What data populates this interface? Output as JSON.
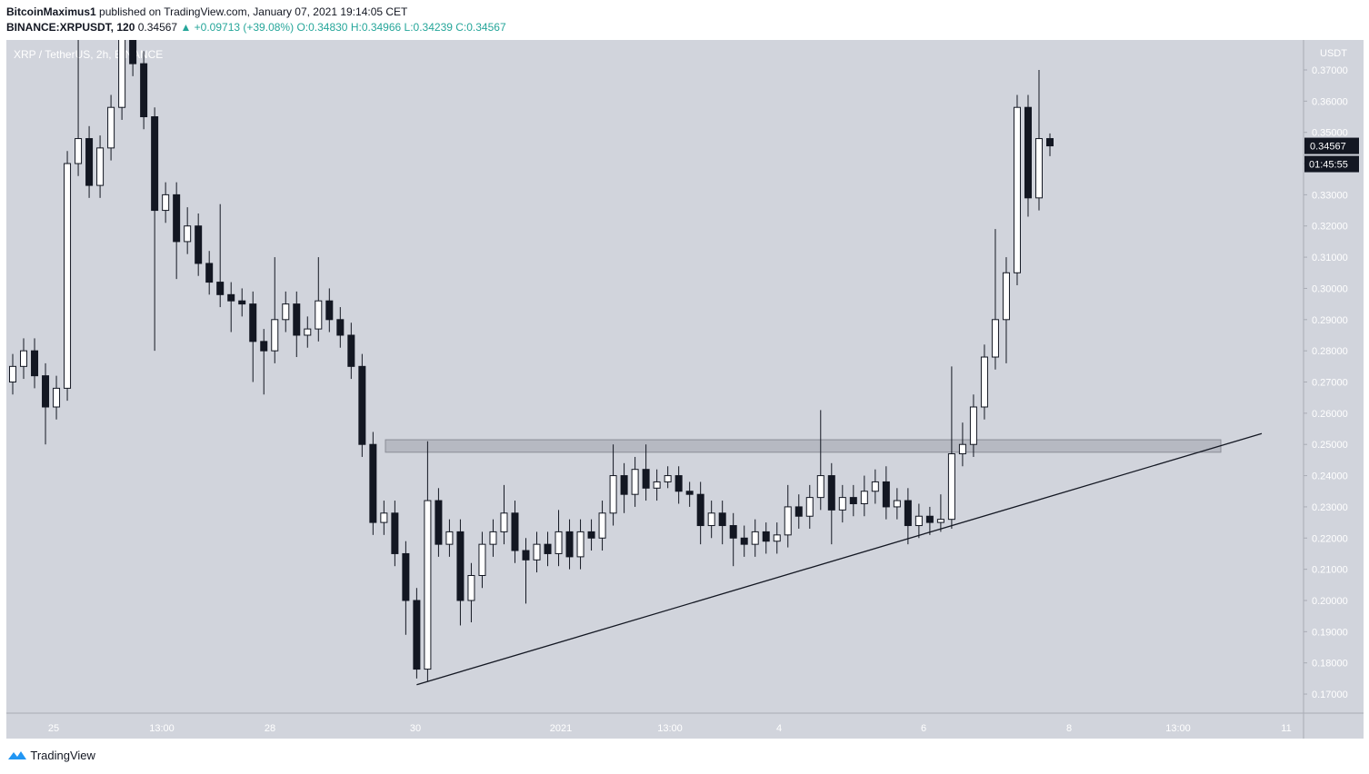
{
  "header": {
    "author": "BitcoinMaximus1",
    "published": "published on TradingView.com, January 07, 2021 19:14:05 CET",
    "symbol": "BINANCE:XRPUSDT, 120",
    "last": "0.34567",
    "change": "▲ +0.09713 (+39.08%)",
    "ohlc": "O:0.34830 H:0.34966 L:0.34239 C:0.34567"
  },
  "chart_data": {
    "type": "candlestick",
    "title": "XRP / TetherUS, 2h, BINANCE",
    "y_axis_label": "USDT",
    "countdown": "01:45:55",
    "ylim": [
      0.1639,
      0.3796
    ],
    "yticks": [
      {
        "value": 0.17,
        "label": "0.17000"
      },
      {
        "value": 0.18,
        "label": "0.18000"
      },
      {
        "value": 0.19,
        "label": "0.19000"
      },
      {
        "value": 0.2,
        "label": "0.20000"
      },
      {
        "value": 0.21,
        "label": "0.21000"
      },
      {
        "value": 0.22,
        "label": "0.22000"
      },
      {
        "value": 0.23,
        "label": "0.23000"
      },
      {
        "value": 0.24,
        "label": "0.24000"
      },
      {
        "value": 0.25,
        "label": "0.25000"
      },
      {
        "value": 0.26,
        "label": "0.26000"
      },
      {
        "value": 0.27,
        "label": "0.27000"
      },
      {
        "value": 0.28,
        "label": "0.28000"
      },
      {
        "value": 0.29,
        "label": "0.29000"
      },
      {
        "value": 0.3,
        "label": "0.30000"
      },
      {
        "value": 0.31,
        "label": "0.31000"
      },
      {
        "value": 0.32,
        "label": "0.32000"
      },
      {
        "value": 0.33,
        "label": "0.33000"
      },
      {
        "value": 0.34,
        "label": "0.34000"
      },
      {
        "value": 0.35,
        "label": "0.35000"
      },
      {
        "value": 0.36,
        "label": "0.36000"
      },
      {
        "value": 0.37,
        "label": "0.37000"
      }
    ],
    "xtick_labels": [
      "25",
      "13:00",
      "28",
      "30",
      "2021",
      "13:00",
      "4",
      "6",
      "8",
      "13:00",
      "11"
    ],
    "resistance_zone": [
      0.2475,
      0.2515
    ],
    "trendline": [
      0.173,
      0.2535
    ],
    "ohlc": [
      [
        0.27,
        0.279,
        0.266,
        0.275
      ],
      [
        0.275,
        0.284,
        0.271,
        0.28
      ],
      [
        0.28,
        0.284,
        0.268,
        0.272
      ],
      [
        0.272,
        0.276,
        0.25,
        0.262
      ],
      [
        0.262,
        0.272,
        0.258,
        0.268
      ],
      [
        0.268,
        0.344,
        0.264,
        0.34
      ],
      [
        0.34,
        0.385,
        0.336,
        0.348
      ],
      [
        0.348,
        0.352,
        0.329,
        0.333
      ],
      [
        0.333,
        0.349,
        0.329,
        0.345
      ],
      [
        0.345,
        0.362,
        0.341,
        0.358
      ],
      [
        0.358,
        0.384,
        0.354,
        0.38
      ],
      [
        0.38,
        0.384,
        0.368,
        0.372
      ],
      [
        0.372,
        0.376,
        0.351,
        0.355
      ],
      [
        0.355,
        0.358,
        0.28,
        0.325
      ],
      [
        0.325,
        0.334,
        0.321,
        0.33
      ],
      [
        0.33,
        0.334,
        0.303,
        0.315
      ],
      [
        0.315,
        0.326,
        0.311,
        0.32
      ],
      [
        0.32,
        0.324,
        0.304,
        0.308
      ],
      [
        0.308,
        0.312,
        0.298,
        0.302
      ],
      [
        0.302,
        0.327,
        0.294,
        0.298
      ],
      [
        0.298,
        0.302,
        0.286,
        0.296
      ],
      [
        0.296,
        0.3,
        0.291,
        0.295
      ],
      [
        0.295,
        0.299,
        0.27,
        0.283
      ],
      [
        0.283,
        0.287,
        0.266,
        0.28
      ],
      [
        0.28,
        0.31,
        0.276,
        0.29
      ],
      [
        0.29,
        0.299,
        0.286,
        0.295
      ],
      [
        0.295,
        0.299,
        0.278,
        0.285
      ],
      [
        0.285,
        0.291,
        0.281,
        0.287
      ],
      [
        0.287,
        0.31,
        0.283,
        0.296
      ],
      [
        0.296,
        0.3,
        0.286,
        0.29
      ],
      [
        0.29,
        0.294,
        0.281,
        0.285
      ],
      [
        0.285,
        0.289,
        0.271,
        0.275
      ],
      [
        0.275,
        0.279,
        0.246,
        0.25
      ],
      [
        0.25,
        0.254,
        0.221,
        0.225
      ],
      [
        0.225,
        0.232,
        0.221,
        0.228
      ],
      [
        0.228,
        0.232,
        0.211,
        0.215
      ],
      [
        0.215,
        0.219,
        0.189,
        0.2
      ],
      [
        0.2,
        0.204,
        0.175,
        0.178
      ],
      [
        0.178,
        0.251,
        0.174,
        0.232
      ],
      [
        0.232,
        0.236,
        0.214,
        0.218
      ],
      [
        0.218,
        0.226,
        0.214,
        0.222
      ],
      [
        0.222,
        0.226,
        0.192,
        0.2
      ],
      [
        0.2,
        0.212,
        0.193,
        0.208
      ],
      [
        0.208,
        0.222,
        0.204,
        0.218
      ],
      [
        0.218,
        0.226,
        0.214,
        0.222
      ],
      [
        0.222,
        0.237,
        0.218,
        0.228
      ],
      [
        0.228,
        0.232,
        0.212,
        0.216
      ],
      [
        0.216,
        0.22,
        0.199,
        0.213
      ],
      [
        0.213,
        0.222,
        0.209,
        0.218
      ],
      [
        0.218,
        0.222,
        0.211,
        0.215
      ],
      [
        0.215,
        0.229,
        0.211,
        0.222
      ],
      [
        0.222,
        0.226,
        0.21,
        0.214
      ],
      [
        0.214,
        0.226,
        0.21,
        0.222
      ],
      [
        0.222,
        0.226,
        0.216,
        0.22
      ],
      [
        0.22,
        0.232,
        0.216,
        0.228
      ],
      [
        0.228,
        0.25,
        0.224,
        0.24
      ],
      [
        0.24,
        0.244,
        0.228,
        0.234
      ],
      [
        0.234,
        0.246,
        0.23,
        0.242
      ],
      [
        0.242,
        0.25,
        0.232,
        0.236
      ],
      [
        0.236,
        0.242,
        0.232,
        0.238
      ],
      [
        0.238,
        0.243,
        0.236,
        0.24
      ],
      [
        0.24,
        0.243,
        0.231,
        0.235
      ],
      [
        0.235,
        0.238,
        0.23,
        0.234
      ],
      [
        0.234,
        0.238,
        0.218,
        0.224
      ],
      [
        0.224,
        0.232,
        0.22,
        0.228
      ],
      [
        0.228,
        0.232,
        0.218,
        0.224
      ],
      [
        0.224,
        0.228,
        0.211,
        0.22
      ],
      [
        0.22,
        0.224,
        0.214,
        0.218
      ],
      [
        0.218,
        0.226,
        0.214,
        0.222
      ],
      [
        0.222,
        0.225,
        0.215,
        0.219
      ],
      [
        0.219,
        0.225,
        0.215,
        0.221
      ],
      [
        0.221,
        0.237,
        0.217,
        0.23
      ],
      [
        0.23,
        0.234,
        0.223,
        0.227
      ],
      [
        0.227,
        0.237,
        0.223,
        0.233
      ],
      [
        0.233,
        0.261,
        0.229,
        0.24
      ],
      [
        0.24,
        0.244,
        0.218,
        0.229
      ],
      [
        0.229,
        0.237,
        0.225,
        0.233
      ],
      [
        0.233,
        0.237,
        0.227,
        0.231
      ],
      [
        0.231,
        0.24,
        0.227,
        0.235
      ],
      [
        0.235,
        0.242,
        0.231,
        0.238
      ],
      [
        0.238,
        0.243,
        0.226,
        0.23
      ],
      [
        0.23,
        0.236,
        0.226,
        0.232
      ],
      [
        0.232,
        0.236,
        0.218,
        0.224
      ],
      [
        0.224,
        0.231,
        0.22,
        0.227
      ],
      [
        0.227,
        0.23,
        0.221,
        0.225
      ],
      [
        0.225,
        0.234,
        0.222,
        0.226
      ],
      [
        0.226,
        0.275,
        0.223,
        0.247
      ],
      [
        0.247,
        0.257,
        0.243,
        0.25
      ],
      [
        0.25,
        0.266,
        0.246,
        0.262
      ],
      [
        0.262,
        0.282,
        0.258,
        0.278
      ],
      [
        0.278,
        0.319,
        0.274,
        0.29
      ],
      [
        0.29,
        0.31,
        0.276,
        0.305
      ],
      [
        0.305,
        0.362,
        0.301,
        0.358
      ],
      [
        0.358,
        0.362,
        0.323,
        0.329
      ],
      [
        0.329,
        0.37,
        0.325,
        0.348
      ],
      [
        0.348,
        0.34966,
        0.34239,
        0.34567
      ]
    ]
  },
  "brand": "TradingView"
}
